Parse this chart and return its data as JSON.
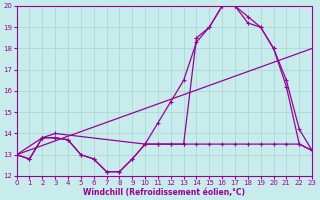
{
  "xlabel": "Windchill (Refroidissement éolien,°C)",
  "xlim": [
    0,
    23
  ],
  "ylim": [
    12,
    20
  ],
  "yticks": [
    12,
    13,
    14,
    15,
    16,
    17,
    18,
    19,
    20
  ],
  "xticks": [
    0,
    1,
    2,
    3,
    4,
    5,
    6,
    7,
    8,
    9,
    10,
    11,
    12,
    13,
    14,
    15,
    16,
    17,
    18,
    19,
    20,
    21,
    22,
    23
  ],
  "bg_color": "#c8ecec",
  "grid_color": "#a8d4d4",
  "line_color": "#990099",
  "curve1_x": [
    0,
    1,
    2,
    3,
    4,
    5,
    6,
    7,
    8,
    9,
    10,
    11,
    12,
    13,
    14,
    15,
    16,
    17,
    18,
    19,
    20,
    21,
    22,
    23
  ],
  "curve1_y": [
    13.0,
    12.8,
    13.8,
    13.8,
    13.7,
    13.0,
    12.8,
    12.2,
    12.2,
    12.8,
    13.5,
    13.5,
    13.5,
    13.5,
    18.5,
    19.0,
    20.0,
    20.0,
    19.5,
    19.0,
    18.0,
    16.5,
    14.2,
    13.2
  ],
  "curve2_x": [
    0,
    2,
    3,
    10,
    11,
    12,
    13,
    14,
    15,
    16,
    17,
    18,
    19,
    20,
    21,
    22,
    23
  ],
  "curve2_y": [
    13.0,
    13.8,
    14.0,
    13.5,
    14.5,
    15.5,
    16.5,
    18.3,
    19.0,
    20.0,
    20.0,
    19.2,
    19.0,
    18.0,
    16.2,
    13.5,
    13.2
  ],
  "curve3_x": [
    0,
    23
  ],
  "curve3_y": [
    13.0,
    18.0
  ],
  "curve4_x": [
    0,
    1,
    2,
    3,
    4,
    5,
    6,
    7,
    8,
    9,
    10,
    11,
    12,
    13,
    14,
    15,
    16,
    17,
    18,
    19,
    20,
    21,
    22,
    23
  ],
  "curve4_y": [
    13.0,
    12.8,
    13.8,
    13.8,
    13.7,
    13.0,
    12.8,
    12.2,
    12.2,
    12.8,
    13.5,
    13.5,
    13.5,
    13.5,
    13.5,
    13.5,
    13.5,
    13.5,
    13.5,
    13.5,
    13.5,
    13.5,
    13.5,
    13.2
  ]
}
